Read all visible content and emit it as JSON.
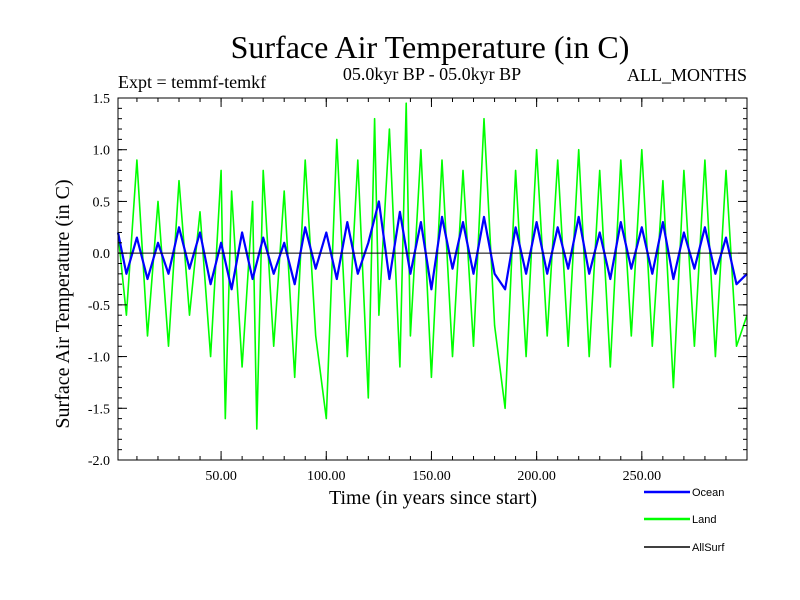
{
  "chart_data": {
    "type": "line",
    "title": "Surface Air Temperature (in C)",
    "subtitle": "05.0kyr BP - 05.0kyr BP",
    "left_annotation": "Expt = temmf-temkf",
    "right_annotation": "ALL_MONTHS",
    "xlabel": "Time (in years since start)",
    "ylabel": "Surface Air Temperature (in C)",
    "xlim": [
      1,
      300
    ],
    "ylim": [
      -2.0,
      1.5
    ],
    "x_ticks": [
      50,
      100,
      150,
      200,
      250
    ],
    "x_tick_labels": [
      "50.00",
      "100.00",
      "150.00",
      "200.00",
      "250.00"
    ],
    "y_ticks": [
      -2.0,
      -1.5,
      -1.0,
      -0.5,
      0.0,
      0.5,
      1.0,
      1.5
    ],
    "y_tick_labels": [
      "-2.0",
      "-1.5",
      "-1.0",
      "-0.5",
      "0.0",
      "0.5",
      "1.0",
      "1.5"
    ],
    "zero_line": true,
    "legend_position": "bottom-right",
    "series": [
      {
        "name": "Land",
        "color": "#00ff00",
        "x": [
          1,
          5,
          10,
          15,
          20,
          25,
          30,
          35,
          40,
          45,
          50,
          52,
          55,
          60,
          65,
          67,
          70,
          75,
          80,
          85,
          90,
          95,
          100,
          105,
          110,
          115,
          120,
          123,
          125,
          130,
          135,
          138,
          140,
          145,
          150,
          155,
          160,
          165,
          170,
          175,
          180,
          185,
          190,
          195,
          200,
          205,
          210,
          215,
          220,
          225,
          230,
          235,
          240,
          245,
          250,
          255,
          260,
          265,
          270,
          275,
          280,
          285,
          290,
          295,
          300
        ],
        "values": [
          0.2,
          -0.6,
          0.9,
          -0.8,
          0.5,
          -0.9,
          0.7,
          -0.6,
          0.4,
          -1.0,
          0.8,
          -1.6,
          0.6,
          -1.1,
          0.5,
          -1.7,
          0.8,
          -0.9,
          0.6,
          -1.2,
          0.9,
          -0.8,
          -1.6,
          1.1,
          -1.0,
          0.9,
          -1.4,
          1.3,
          -0.6,
          1.2,
          -1.1,
          1.45,
          -0.8,
          1.0,
          -1.2,
          0.9,
          -1.0,
          0.8,
          -0.9,
          1.3,
          -0.7,
          -1.5,
          0.8,
          -1.0,
          1.0,
          -0.8,
          0.9,
          -0.9,
          1.0,
          -1.0,
          0.8,
          -1.1,
          0.9,
          -0.8,
          1.0,
          -0.9,
          0.7,
          -1.3,
          0.8,
          -0.9,
          0.9,
          -1.0,
          0.8,
          -0.9,
          -0.6
        ]
      },
      {
        "name": "Ocean",
        "color": "#0000ff",
        "x": [
          1,
          5,
          10,
          15,
          20,
          25,
          30,
          35,
          40,
          45,
          50,
          55,
          60,
          65,
          70,
          75,
          80,
          85,
          90,
          95,
          100,
          105,
          110,
          115,
          120,
          125,
          130,
          135,
          140,
          145,
          150,
          155,
          160,
          165,
          170,
          175,
          180,
          185,
          190,
          195,
          200,
          205,
          210,
          215,
          220,
          225,
          230,
          235,
          240,
          245,
          250,
          255,
          260,
          265,
          270,
          275,
          280,
          285,
          290,
          295,
          300
        ],
        "values": [
          0.2,
          -0.2,
          0.15,
          -0.25,
          0.1,
          -0.2,
          0.25,
          -0.15,
          0.2,
          -0.3,
          0.1,
          -0.35,
          0.2,
          -0.25,
          0.15,
          -0.2,
          0.1,
          -0.3,
          0.25,
          -0.15,
          0.2,
          -0.25,
          0.3,
          -0.2,
          0.1,
          0.5,
          -0.25,
          0.4,
          -0.2,
          0.3,
          -0.35,
          0.35,
          -0.15,
          0.3,
          -0.2,
          0.35,
          -0.2,
          -0.35,
          0.25,
          -0.2,
          0.3,
          -0.2,
          0.25,
          -0.15,
          0.35,
          -0.2,
          0.2,
          -0.25,
          0.3,
          -0.15,
          0.25,
          -0.2,
          0.3,
          -0.25,
          0.2,
          -0.15,
          0.25,
          -0.2,
          0.15,
          -0.3,
          -0.2
        ]
      },
      {
        "name": "AllSurf",
        "color": "#000000",
        "x": [
          1,
          300
        ],
        "values": [
          0.0,
          0.0
        ]
      }
    ]
  }
}
